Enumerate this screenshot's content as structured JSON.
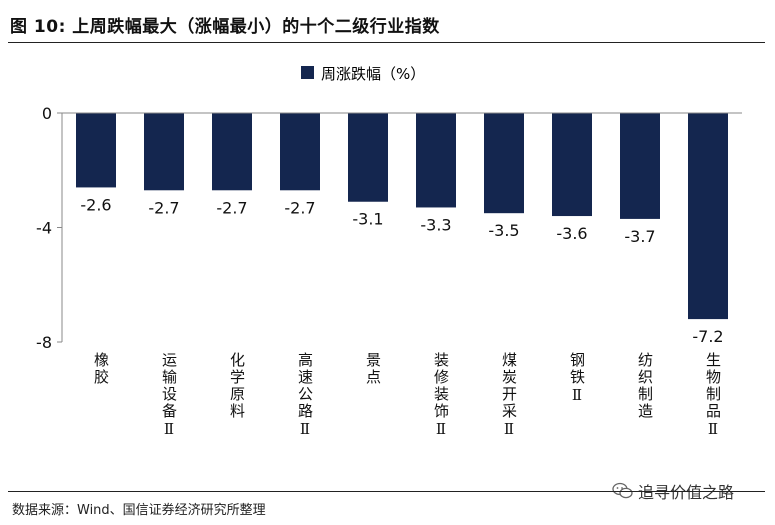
{
  "header": {
    "title": "图 10:  上周跌幅最大（涨幅最小）的十个二级行业指数"
  },
  "footer": {
    "source": "数据来源：Wind、国信证券经济研究所整理",
    "watermark": "追寻价值之路",
    "watermark_icon": "wechat-icon"
  },
  "colors": {
    "bar": "#14264f",
    "axis": "#888888",
    "text": "#111111"
  },
  "chart_data": {
    "type": "bar",
    "title": "",
    "xlabel": "",
    "ylabel": "",
    "ylim": [
      -8,
      0
    ],
    "yticks": [
      0,
      -4,
      -8
    ],
    "ytick_labels": [
      "0",
      "-4",
      "-8"
    ],
    "legend_position": "top-center",
    "grid": false,
    "categories": [
      "橡胶",
      "运输设备Ⅱ",
      "化学原料",
      "高速公路Ⅱ",
      "景点",
      "装修装饰Ⅱ",
      "煤炭开采Ⅱ",
      "钢铁Ⅱ",
      "纺织制造",
      "生物制品Ⅱ"
    ],
    "series": [
      {
        "name": "周涨跌幅（%）",
        "values": [
          -2.6,
          -2.7,
          -2.7,
          -2.7,
          -3.1,
          -3.3,
          -3.5,
          -3.6,
          -3.7,
          -7.2
        ],
        "labels": [
          "-2.6",
          "-2.7",
          "-2.7",
          "-2.7",
          "-3.1",
          "-3.3",
          "-3.5",
          "-3.6",
          "-3.7",
          "-7.2"
        ]
      }
    ]
  }
}
